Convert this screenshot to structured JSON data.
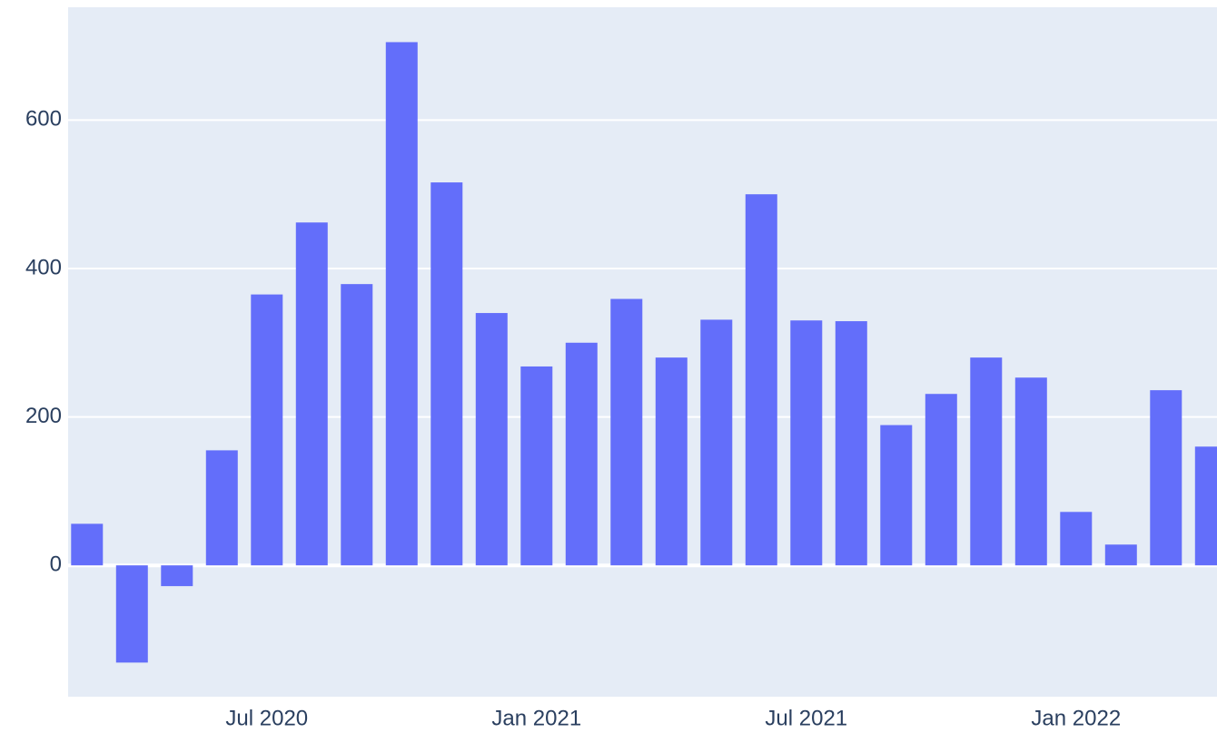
{
  "chart_data": {
    "type": "bar",
    "x": [
      "2020-03",
      "2020-04",
      "2020-05",
      "2020-06",
      "2020-07",
      "2020-08",
      "2020-09",
      "2020-10",
      "2020-11",
      "2020-12",
      "2021-01",
      "2021-02",
      "2021-03",
      "2021-04",
      "2021-05",
      "2021-06",
      "2021-07",
      "2021-08",
      "2021-09",
      "2021-10",
      "2021-11",
      "2021-12",
      "2022-01",
      "2022-02",
      "2022-03",
      "2022-04"
    ],
    "values": [
      56,
      -131,
      -28,
      155,
      365,
      462,
      379,
      705,
      516,
      340,
      268,
      300,
      359,
      280,
      331,
      500,
      330,
      329,
      189,
      231,
      280,
      253,
      72,
      28,
      236,
      160
    ],
    "color": "#636efa",
    "ylim": [
      -177,
      752
    ],
    "yticks": [
      0,
      200,
      400,
      600
    ],
    "xticks": [
      {
        "value": "2020-07",
        "label": "Jul 2020"
      },
      {
        "value": "2021-01",
        "label": "Jan 2021"
      },
      {
        "value": "2021-07",
        "label": "Jul 2021"
      },
      {
        "value": "2022-01",
        "label": "Jan 2022"
      }
    ],
    "grid": true
  }
}
